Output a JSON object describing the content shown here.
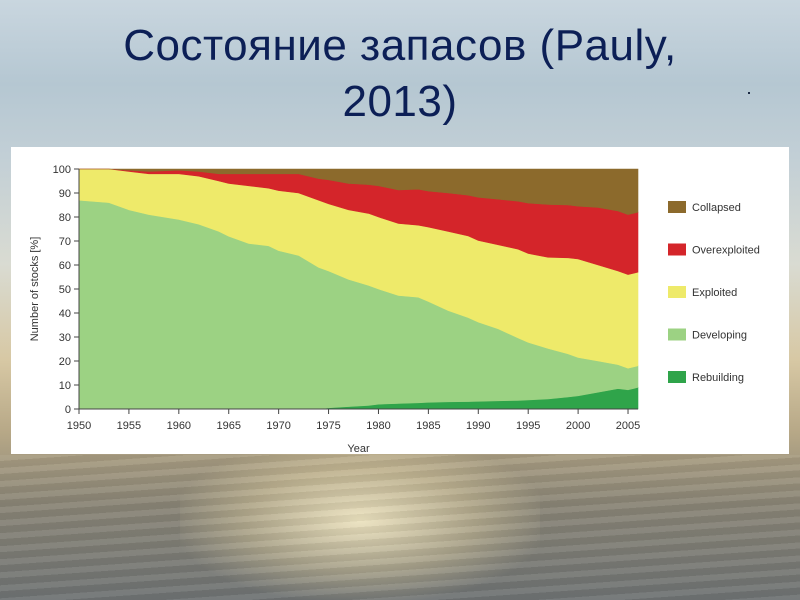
{
  "slide": {
    "title": "Состояние запасов (Pauly, 2013)",
    "dot": "."
  },
  "colors": {
    "collapsed": "#8c6a2c",
    "overexploited": "#d4252a",
    "exploited": "#eeea6a",
    "developing": "#9cd283",
    "rebuilding": "#2fa44a"
  },
  "chart_data": {
    "type": "area",
    "stacked": true,
    "xlabel": "Year",
    "ylabel": "Number of stocks [%]",
    "xlim": [
      1950,
      2006
    ],
    "ylim": [
      0,
      100
    ],
    "xticks": [
      1950,
      1955,
      1960,
      1965,
      1970,
      1975,
      1980,
      1985,
      1990,
      1995,
      2000,
      2005
    ],
    "yticks": [
      0,
      10,
      20,
      30,
      40,
      50,
      60,
      70,
      80,
      90,
      100
    ],
    "legend_position": "right",
    "x": [
      1950,
      1953,
      1955,
      1957,
      1960,
      1962,
      1964,
      1965,
      1967,
      1969,
      1970,
      1972,
      1974,
      1975,
      1977,
      1979,
      1980,
      1982,
      1984,
      1985,
      1987,
      1989,
      1990,
      1992,
      1994,
      1995,
      1997,
      1999,
      2000,
      2002,
      2004,
      2005,
      2006
    ],
    "series": [
      {
        "name": "Rebuilding",
        "key": "rebuilding",
        "values": [
          0,
          0,
          0,
          0,
          0,
          0,
          0,
          0,
          0,
          0,
          0,
          0,
          0,
          0.5,
          1,
          1.5,
          2,
          2.3,
          2.6,
          2.8,
          3,
          3.1,
          3.2,
          3.4,
          3.6,
          3.8,
          4.2,
          5,
          5.5,
          7,
          8.5,
          8,
          9
        ]
      },
      {
        "name": "Developing",
        "key": "developing",
        "values": [
          87,
          86,
          83,
          81,
          79,
          77,
          74,
          72,
          69,
          68,
          66,
          64,
          59,
          57,
          53,
          50,
          48,
          45,
          44,
          42,
          38,
          35,
          33,
          30,
          26,
          24,
          21,
          18,
          16,
          13,
          10,
          9,
          9
        ]
      },
      {
        "name": "Exploited",
        "key": "exploited",
        "values": [
          13,
          14,
          16,
          17,
          19,
          20,
          21,
          22,
          24,
          24,
          25,
          26,
          28,
          28,
          29,
          30,
          30,
          30,
          30,
          31,
          33,
          34,
          34,
          35,
          37,
          37,
          38,
          40,
          41,
          40,
          39,
          39,
          39
        ]
      },
      {
        "name": "Overexploited",
        "key": "overexploited",
        "values": [
          0,
          0,
          0.5,
          1,
          1.5,
          2,
          3,
          4,
          5,
          6,
          7,
          8,
          9,
          10,
          11,
          12,
          13,
          14,
          15,
          15,
          16,
          17,
          18,
          19,
          20,
          21,
          22,
          22,
          22,
          24,
          25,
          25,
          25
        ]
      },
      {
        "name": "Collapsed",
        "key": "collapsed",
        "values": [
          0,
          0,
          0.5,
          1,
          0.5,
          1,
          2,
          2,
          2,
          2,
          2,
          2,
          4,
          4.5,
          6,
          6.5,
          7,
          8.7,
          8.4,
          9.2,
          10,
          10.9,
          11.8,
          12.6,
          13.4,
          14.2,
          14.8,
          15,
          15.5,
          16,
          17.5,
          19,
          18
        ]
      }
    ],
    "legend_order": [
      "Collapsed",
      "Overexploited",
      "Exploited",
      "Developing",
      "Rebuilding"
    ]
  }
}
